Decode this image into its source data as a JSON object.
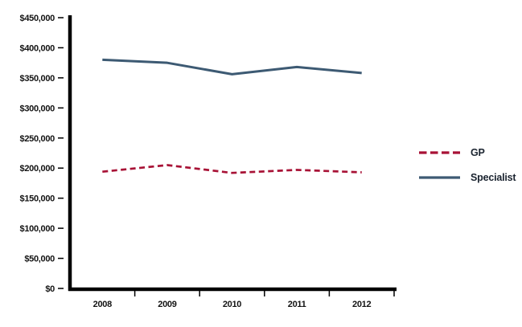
{
  "chart_data": {
    "type": "line",
    "title": "",
    "xlabel": "",
    "ylabel": "",
    "categories": [
      "2008",
      "2009",
      "2010",
      "2011",
      "2012"
    ],
    "series": [
      {
        "name": "GP",
        "style": "dashed",
        "color": "#a81236",
        "values": [
          194000,
          205000,
          192000,
          197000,
          193000
        ]
      },
      {
        "name": "Specialist",
        "style": "solid",
        "color": "#3d5a73",
        "values": [
          380000,
          375000,
          356000,
          368000,
          358000
        ]
      }
    ],
    "ylim": [
      0,
      450000
    ],
    "ytick_step": 50000,
    "ytick_labels": [
      "$0",
      "$50,000",
      "$100,000",
      "$150,000",
      "$200,000",
      "$250,000",
      "$300,000",
      "$350,000",
      "$400,000",
      "$450,000"
    ],
    "grid": false,
    "legend_position": "right"
  },
  "legend": {
    "entries": [
      {
        "label": "GP"
      },
      {
        "label": "Specialist"
      }
    ]
  },
  "colors": {
    "axis": "#000000",
    "tick_text": "#131313",
    "legend_text": "#1b2430"
  }
}
